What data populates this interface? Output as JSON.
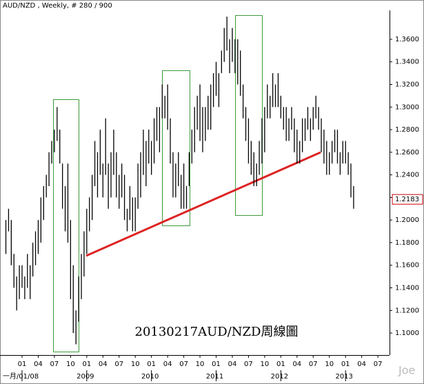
{
  "chart_data": {
    "type": "ohlc",
    "title": "AUD/NZD , Weekly, # 280 / 900",
    "annotation": "20130217AUD/NZD周線圖",
    "watermark": "Joe",
    "x": [
      -3,
      -2.5,
      -2,
      -1.5,
      -1,
      -0.5,
      0,
      0.5,
      1,
      1.5,
      2,
      2.5,
      3,
      3.5,
      4,
      4.5,
      5,
      5.5,
      6,
      6.5,
      7,
      7.5,
      8,
      8.5,
      9,
      9.5,
      10,
      10.5,
      11,
      11.5,
      12,
      12.5,
      13,
      13.5,
      14,
      14.5,
      15,
      15.5,
      16,
      16.5,
      17,
      17.5,
      18,
      18.5,
      19,
      19.5,
      20,
      20.5,
      21,
      21.5,
      22,
      22.5,
      23,
      23.5,
      24,
      24.5,
      25,
      25.5,
      26,
      26.5,
      27,
      27.5,
      28,
      28.5,
      29,
      29.5,
      30,
      30.5,
      31,
      31.5,
      32,
      32.5,
      33,
      33.5,
      34,
      34.5,
      35,
      35.5,
      36,
      36.5,
      37,
      37.5,
      38,
      38.5,
      39,
      39.5,
      40,
      40.5,
      41,
      41.5,
      42,
      42.5,
      43,
      43.5,
      44,
      44.5,
      45,
      45.5,
      46,
      46.5,
      47,
      47.5,
      48,
      48.5,
      49,
      49.5,
      50,
      50.5,
      51,
      51.5,
      52,
      52.5,
      53,
      53.5,
      54,
      54.5,
      55,
      55.5,
      56,
      56.5,
      57,
      57.5,
      58,
      58.5,
      59,
      59.5,
      60,
      60.5,
      61,
      61.5
    ],
    "series": [
      {
        "color": "#000000",
        "high": [
          1.2,
          1.21,
          1.2,
          1.17,
          1.15,
          1.16,
          1.16,
          1.15,
          1.17,
          1.16,
          1.18,
          1.19,
          1.2,
          1.22,
          1.23,
          1.24,
          1.26,
          1.27,
          1.28,
          1.3,
          1.28,
          1.25,
          1.23,
          1.25,
          1.2,
          1.16,
          1.12,
          1.15,
          1.17,
          1.19,
          1.21,
          1.22,
          1.24,
          1.27,
          1.26,
          1.28,
          1.25,
          1.29,
          1.25,
          1.26,
          1.28,
          1.26,
          1.24,
          1.25,
          1.24,
          1.21,
          1.23,
          1.22,
          1.22,
          1.25,
          1.26,
          1.28,
          1.27,
          1.28,
          1.27,
          1.29,
          1.3,
          1.3,
          1.32,
          1.31,
          1.32,
          1.29,
          1.26,
          1.25,
          1.26,
          1.24,
          1.25,
          1.23,
          1.26,
          1.28,
          1.3,
          1.31,
          1.32,
          1.3,
          1.3,
          1.31,
          1.32,
          1.33,
          1.34,
          1.33,
          1.35,
          1.37,
          1.38,
          1.36,
          1.37,
          1.36,
          1.36,
          1.35,
          1.32,
          1.3,
          1.29,
          1.27,
          1.26,
          1.25,
          1.27,
          1.29,
          1.3,
          1.32,
          1.31,
          1.33,
          1.32,
          1.33,
          1.31,
          1.3,
          1.3,
          1.29,
          1.3,
          1.29,
          1.28,
          1.27,
          1.29,
          1.29,
          1.3,
          1.29,
          1.3,
          1.31,
          1.3,
          1.29,
          1.28,
          1.27,
          1.26,
          1.27,
          1.28,
          1.28,
          1.26,
          1.27,
          1.27,
          1.26,
          1.25,
          1.23
        ],
        "low": [
          1.17,
          1.19,
          1.16,
          1.14,
          1.12,
          1.13,
          1.14,
          1.13,
          1.14,
          1.13,
          1.15,
          1.16,
          1.17,
          1.18,
          1.2,
          1.22,
          1.23,
          1.25,
          1.26,
          1.27,
          1.25,
          1.21,
          1.19,
          1.18,
          1.13,
          1.1,
          1.09,
          1.11,
          1.13,
          1.15,
          1.17,
          1.19,
          1.2,
          1.23,
          1.22,
          1.24,
          1.22,
          1.24,
          1.21,
          1.22,
          1.24,
          1.22,
          1.21,
          1.22,
          1.2,
          1.19,
          1.2,
          1.19,
          1.19,
          1.21,
          1.22,
          1.24,
          1.23,
          1.25,
          1.24,
          1.25,
          1.27,
          1.26,
          1.29,
          1.29,
          1.28,
          1.25,
          1.22,
          1.22,
          1.23,
          1.21,
          1.21,
          1.21,
          1.23,
          1.25,
          1.26,
          1.28,
          1.27,
          1.26,
          1.27,
          1.28,
          1.28,
          1.3,
          1.31,
          1.3,
          1.33,
          1.34,
          1.35,
          1.33,
          1.34,
          1.33,
          1.32,
          1.31,
          1.29,
          1.27,
          1.25,
          1.24,
          1.23,
          1.23,
          1.24,
          1.25,
          1.26,
          1.29,
          1.29,
          1.3,
          1.3,
          1.3,
          1.29,
          1.28,
          1.27,
          1.27,
          1.28,
          1.26,
          1.25,
          1.25,
          1.26,
          1.27,
          1.28,
          1.27,
          1.28,
          1.29,
          1.28,
          1.26,
          1.25,
          1.24,
          1.24,
          1.25,
          1.26,
          1.25,
          1.24,
          1.25,
          1.25,
          1.24,
          1.22,
          1.21
        ]
      }
    ],
    "last_price": 1.2183,
    "last_price_color": "#cc0000",
    "xlim": [
      -4.09,
      68.16
    ],
    "ylim": [
      1.0805,
      1.3856
    ],
    "xticks": [
      {
        "value": 0,
        "label": "01"
      },
      {
        "value": 3,
        "label": "04"
      },
      {
        "value": 6,
        "label": "07"
      },
      {
        "value": 9,
        "label": "10"
      },
      {
        "value": 12,
        "label": "01"
      },
      {
        "value": 15,
        "label": "04"
      },
      {
        "value": 18,
        "label": "07"
      },
      {
        "value": 21,
        "label": "10"
      },
      {
        "value": 24,
        "label": "01"
      },
      {
        "value": 27,
        "label": "04"
      },
      {
        "value": 30,
        "label": "07"
      },
      {
        "value": 33,
        "label": "10"
      },
      {
        "value": 36,
        "label": "01"
      },
      {
        "value": 39,
        "label": "04"
      },
      {
        "value": 42,
        "label": "07"
      },
      {
        "value": 45,
        "label": "10"
      },
      {
        "value": 48,
        "label": "01"
      },
      {
        "value": 51,
        "label": "04"
      },
      {
        "value": 54,
        "label": "07"
      },
      {
        "value": 57,
        "label": "10"
      },
      {
        "value": 60,
        "label": "01"
      },
      {
        "value": 63,
        "label": "04"
      },
      {
        "value": 66,
        "label": "07"
      }
    ],
    "xticks_year": [
      {
        "value": 0,
        "label": "一月/01/08"
      },
      {
        "value": 12,
        "label": "2009"
      },
      {
        "value": 24,
        "label": "2010"
      },
      {
        "value": 36,
        "label": "2011"
      },
      {
        "value": 48,
        "label": "2012"
      },
      {
        "value": 60,
        "label": "2013"
      }
    ],
    "yticks": [
      {
        "value": 1.1,
        "label": "1.1000"
      },
      {
        "value": 1.12,
        "label": "1.1200"
      },
      {
        "value": 1.14,
        "label": "1.1400"
      },
      {
        "value": 1.16,
        "label": "1.1600"
      },
      {
        "value": 1.18,
        "label": "1.1800"
      },
      {
        "value": 1.2,
        "label": "1.2000"
      },
      {
        "value": 1.22,
        "label": "1.2200"
      },
      {
        "value": 1.24,
        "label": "1.2400"
      },
      {
        "value": 1.26,
        "label": "1.2600"
      },
      {
        "value": 1.28,
        "label": "1.2800"
      },
      {
        "value": 1.3,
        "label": "1.3000"
      },
      {
        "value": 1.32,
        "label": "1.3200"
      },
      {
        "value": 1.34,
        "label": "1.3400"
      },
      {
        "value": 1.36,
        "label": "1.3600"
      }
    ],
    "grid": false
  }
}
